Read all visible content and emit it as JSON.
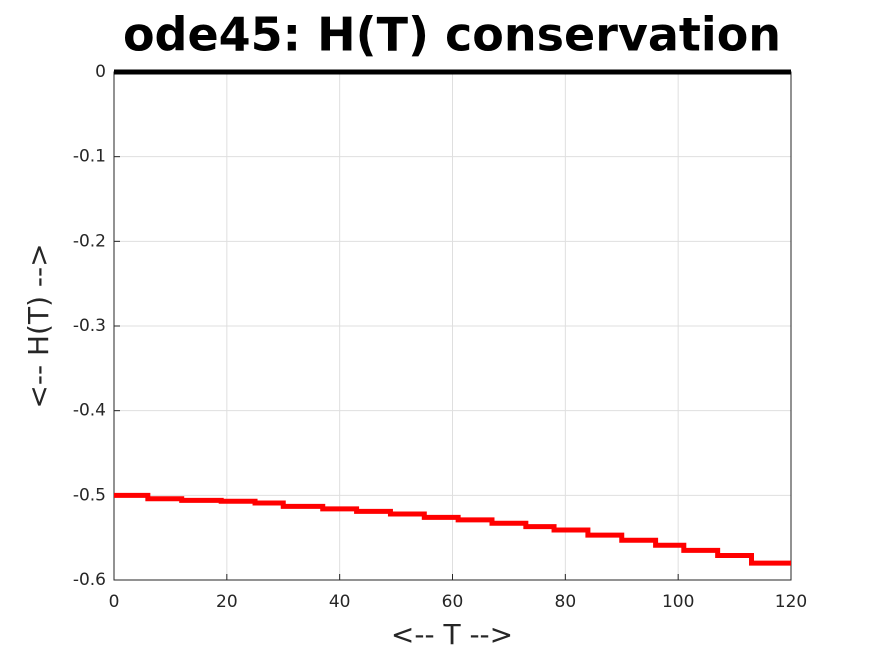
{
  "chart_data": {
    "type": "line",
    "title": "ode45: H(T) conservation",
    "xlabel": "<-- T -->",
    "ylabel": "<-- H(T) -->",
    "xlim": [
      0,
      120
    ],
    "xticks": [
      0,
      20,
      40,
      60,
      80,
      100,
      120
    ],
    "ylim": [
      -0.6,
      0
    ],
    "yticks": [
      0,
      -0.1,
      -0.2,
      -0.3,
      -0.4,
      -0.5,
      -0.6
    ],
    "grid": true,
    "series": [
      {
        "color": "#000000",
        "x": [
          0,
          120
        ],
        "values": [
          0,
          0
        ]
      },
      {
        "color": "#ff0000",
        "x": [
          0,
          6,
          6,
          12,
          12,
          19,
          19,
          25,
          25,
          30,
          30,
          37,
          37,
          43,
          43,
          49,
          49,
          55,
          55,
          61,
          61,
          67,
          67,
          73,
          73,
          78,
          78,
          84,
          84,
          90,
          90,
          96,
          96,
          101,
          101,
          107,
          107,
          113,
          113,
          120
        ],
        "values": [
          -0.5,
          -0.5,
          -0.504,
          -0.504,
          -0.506,
          -0.506,
          -0.507,
          -0.507,
          -0.509,
          -0.509,
          -0.513,
          -0.513,
          -0.516,
          -0.516,
          -0.519,
          -0.519,
          -0.522,
          -0.522,
          -0.526,
          -0.526,
          -0.529,
          -0.529,
          -0.533,
          -0.533,
          -0.537,
          -0.537,
          -0.541,
          -0.541,
          -0.547,
          -0.547,
          -0.553,
          -0.553,
          -0.559,
          -0.559,
          -0.565,
          -0.565,
          -0.571,
          -0.571,
          -0.58,
          -0.58
        ]
      }
    ]
  }
}
